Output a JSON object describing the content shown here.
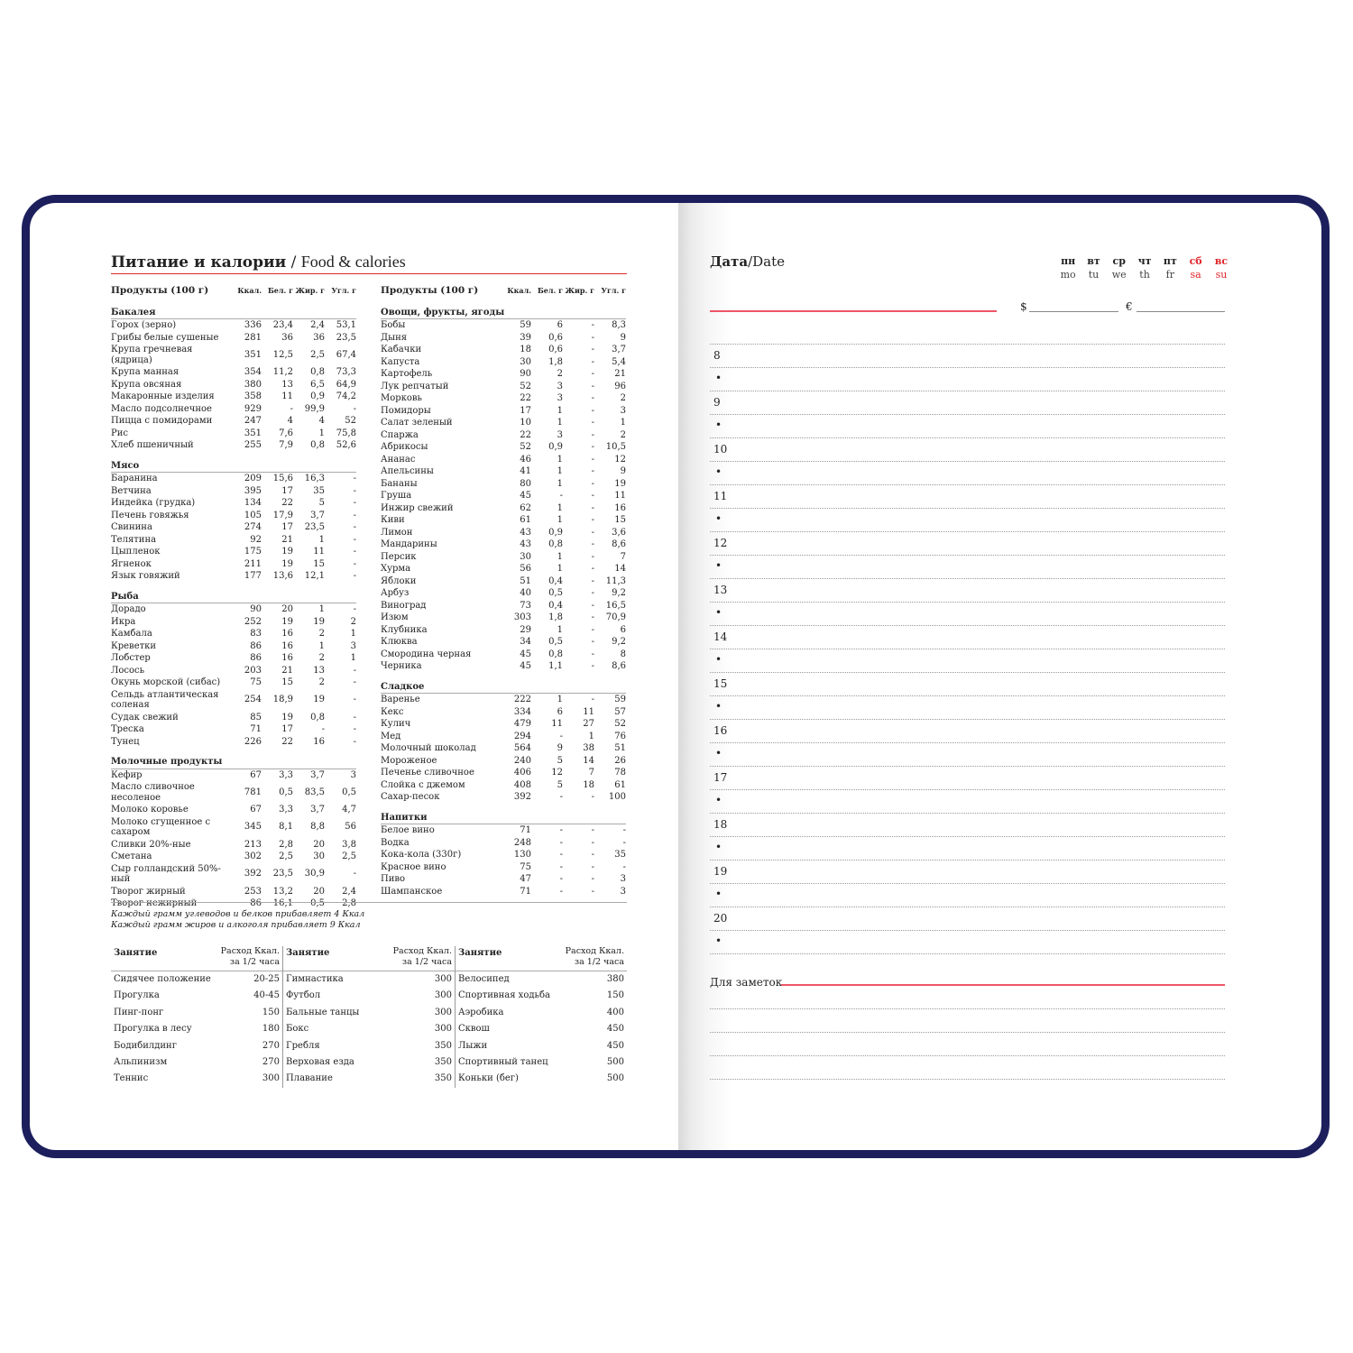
{
  "title": {
    "ru": "Питание и калории",
    "sep": " / ",
    "en": "Food & calories"
  },
  "table_headers": {
    "product": "Продукты (100 г)",
    "kcal": "Ккал.",
    "protein": "Бел. г",
    "fat": "Жир. г",
    "carbs": "Угл. г"
  },
  "left_sections": [
    {
      "name": "Бакалея",
      "rows": [
        [
          "Горох (зерно)",
          "336",
          "23,4",
          "2,4",
          "53,1"
        ],
        [
          "Грибы белые сушеные",
          "281",
          "36",
          "36",
          "23,5"
        ],
        [
          "Крупа гречневая (ядрица)",
          "351",
          "12,5",
          "2,5",
          "67,4"
        ],
        [
          "Крупа манная",
          "354",
          "11,2",
          "0,8",
          "73,3"
        ],
        [
          "Крупа овсяная",
          "380",
          "13",
          "6,5",
          "64,9"
        ],
        [
          "Макаронные изделия",
          "358",
          "11",
          "0,9",
          "74,2"
        ],
        [
          "Масло подсолнечное",
          "929",
          "-",
          "99,9",
          "-"
        ],
        [
          "Пицца с помидорами",
          "247",
          "4",
          "4",
          "52"
        ],
        [
          "Рис",
          "351",
          "7,6",
          "1",
          "75,8"
        ],
        [
          "Хлеб пшеничный",
          "255",
          "7,9",
          "0,8",
          "52,6"
        ]
      ]
    },
    {
      "name": "Мясо",
      "rows": [
        [
          "Баранина",
          "209",
          "15,6",
          "16,3",
          "-"
        ],
        [
          "Ветчина",
          "395",
          "17",
          "35",
          "-"
        ],
        [
          "Индейка (грудка)",
          "134",
          "22",
          "5",
          "-"
        ],
        [
          "Печень говяжья",
          "105",
          "17,9",
          "3,7",
          "-"
        ],
        [
          "Свинина",
          "274",
          "17",
          "23,5",
          "-"
        ],
        [
          "Телятина",
          "92",
          "21",
          "1",
          "-"
        ],
        [
          "Цыпленок",
          "175",
          "19",
          "11",
          "-"
        ],
        [
          "Ягненок",
          "211",
          "19",
          "15",
          "-"
        ],
        [
          "Язык говяжий",
          "177",
          "13,6",
          "12,1",
          "-"
        ]
      ]
    },
    {
      "name": "Рыба",
      "rows": [
        [
          "Дорадо",
          "90",
          "20",
          "1",
          "-"
        ],
        [
          "Икра",
          "252",
          "19",
          "19",
          "2"
        ],
        [
          "Камбала",
          "83",
          "16",
          "2",
          "1"
        ],
        [
          "Креветки",
          "86",
          "16",
          "1",
          "3"
        ],
        [
          "Лобстер",
          "86",
          "16",
          "2",
          "1"
        ],
        [
          "Лосось",
          "203",
          "21",
          "13",
          "-"
        ],
        [
          "Окунь морской (сибас)",
          "75",
          "15",
          "2",
          "-"
        ],
        [
          "Сельдь атлантическая соленая",
          "254",
          "18,9",
          "19",
          "-"
        ],
        [
          "Судак свежий",
          "85",
          "19",
          "0,8",
          "-"
        ],
        [
          "Треска",
          "71",
          "17",
          "-",
          "-"
        ],
        [
          "Тунец",
          "226",
          "22",
          "16",
          "-"
        ]
      ]
    },
    {
      "name": "Молочные продукты",
      "rows": [
        [
          "Кефир",
          "67",
          "3,3",
          "3,7",
          "3"
        ],
        [
          "Масло сливочное несоленое",
          "781",
          "0,5",
          "83,5",
          "0,5"
        ],
        [
          "Молоко коровье",
          "67",
          "3,3",
          "3,7",
          "4,7"
        ],
        [
          "Молоко сгущенное с сахаром",
          "345",
          "8,1",
          "8,8",
          "56"
        ],
        [
          "Сливки 20%-ные",
          "213",
          "2,8",
          "20",
          "3,8"
        ],
        [
          "Сметана",
          "302",
          "2,5",
          "30",
          "2,5"
        ],
        [
          "Сыр голландский 50%-ный",
          "392",
          "23,5",
          "30,9",
          "-"
        ],
        [
          "Творог жирный",
          "253",
          "13,2",
          "20",
          "2,4"
        ],
        [
          "Творог нежирный",
          "86",
          "16,1",
          "0,5",
          "2,8"
        ]
      ]
    }
  ],
  "right_sections": [
    {
      "name": "Овощи, фрукты, ягоды",
      "rows": [
        [
          "Бобы",
          "59",
          "6",
          "-",
          "8,3"
        ],
        [
          "Дыня",
          "39",
          "0,6",
          "-",
          "9"
        ],
        [
          "Кабачки",
          "18",
          "0,6",
          "-",
          "3,7"
        ],
        [
          "Капуста",
          "30",
          "1,8",
          "-",
          "5,4"
        ],
        [
          "Картофель",
          "90",
          "2",
          "-",
          "21"
        ],
        [
          "Лук репчатый",
          "52",
          "3",
          "-",
          "96"
        ],
        [
          "Морковь",
          "22",
          "3",
          "-",
          "2"
        ],
        [
          "Помидоры",
          "17",
          "1",
          "-",
          "3"
        ],
        [
          "Салат зеленый",
          "10",
          "1",
          "-",
          "1"
        ],
        [
          "Спаржа",
          "22",
          "3",
          "-",
          "2"
        ],
        [
          "Абрикосы",
          "52",
          "0,9",
          "-",
          "10,5"
        ],
        [
          "Ананас",
          "46",
          "1",
          "-",
          "12"
        ],
        [
          "Апельсины",
          "41",
          "1",
          "-",
          "9"
        ],
        [
          "Бананы",
          "80",
          "1",
          "-",
          "19"
        ],
        [
          "Груша",
          "45",
          "-",
          "-",
          "11"
        ],
        [
          "Инжир свежий",
          "62",
          "1",
          "-",
          "16"
        ],
        [
          "Киви",
          "61",
          "1",
          "-",
          "15"
        ],
        [
          "Лимон",
          "43",
          "0,9",
          "-",
          "3,6"
        ],
        [
          "Мандарины",
          "43",
          "0,8",
          "-",
          "8,6"
        ],
        [
          "Персик",
          "30",
          "1",
          "-",
          "7"
        ],
        [
          "Хурма",
          "56",
          "1",
          "-",
          "14"
        ],
        [
          "Яблоки",
          "51",
          "0,4",
          "-",
          "11,3"
        ],
        [
          "Арбуз",
          "40",
          "0,5",
          "-",
          "9,2"
        ],
        [
          "Виноград",
          "73",
          "0,4",
          "-",
          "16,5"
        ],
        [
          "Изюм",
          "303",
          "1,8",
          "-",
          "70,9"
        ],
        [
          "Клубника",
          "29",
          "1",
          "-",
          "6"
        ],
        [
          "Клюква",
          "34",
          "0,5",
          "-",
          "9,2"
        ],
        [
          "Смородина черная",
          "45",
          "0,8",
          "-",
          "8"
        ],
        [
          "Черника",
          "45",
          "1,1",
          "-",
          "8,6"
        ]
      ]
    },
    {
      "name": "Сладкое",
      "rows": [
        [
          "Варенье",
          "222",
          "1",
          "-",
          "59"
        ],
        [
          "Кекс",
          "334",
          "6",
          "11",
          "57"
        ],
        [
          "Кулич",
          "479",
          "11",
          "27",
          "52"
        ],
        [
          "Мед",
          "294",
          "-",
          "1",
          "76"
        ],
        [
          "Молочный шоколад",
          "564",
          "9",
          "38",
          "51"
        ],
        [
          "Мороженое",
          "240",
          "5",
          "14",
          "26"
        ],
        [
          "Печенье сливочное",
          "406",
          "12",
          "7",
          "78"
        ],
        [
          "Слойка с джемом",
          "408",
          "5",
          "18",
          "61"
        ],
        [
          "Сахар-песок",
          "392",
          "-",
          "-",
          "100"
        ]
      ]
    },
    {
      "name": "Напитки",
      "rows": [
        [
          "Белое вино",
          "71",
          "-",
          "-",
          "-"
        ],
        [
          "Водка",
          "248",
          "-",
          "-",
          "-"
        ],
        [
          "Кока-кола (330г)",
          "130",
          "-",
          "-",
          "35"
        ],
        [
          "Красное вино",
          "75",
          "-",
          "-",
          "-"
        ],
        [
          "Пиво",
          "47",
          "-",
          "-",
          "3"
        ],
        [
          "Шампанское",
          "71",
          "-",
          "-",
          "3"
        ]
      ]
    }
  ],
  "notes": [
    "Каждый грамм углеводов и белков прибавляет 4 Ккал",
    "Каждый грамм жиров и алкоголя прибавляет 9 Ккал"
  ],
  "activity_header": {
    "activity": "Занятие",
    "cost": "Расход Ккал.",
    "per": "за 1/2 часа"
  },
  "activities": [
    [
      [
        "Сидячее положение",
        "20-25"
      ],
      [
        "Прогулка",
        "40-45"
      ],
      [
        "Пинг-понг",
        "150"
      ],
      [
        "Прогулка в лесу",
        "180"
      ],
      [
        "Бодибилдинг",
        "270"
      ],
      [
        "Альпинизм",
        "270"
      ],
      [
        "Теннис",
        "300"
      ]
    ],
    [
      [
        "Гимнастика",
        "300"
      ],
      [
        "Футбол",
        "300"
      ],
      [
        "Бальные танцы",
        "300"
      ],
      [
        "Бокс",
        "300"
      ],
      [
        "Гребля",
        "350"
      ],
      [
        "Верховая езда",
        "350"
      ],
      [
        "Плавание",
        "350"
      ]
    ],
    [
      [
        "Велосипед",
        "380"
      ],
      [
        "Спортивная ходьба",
        "150"
      ],
      [
        "Аэробика",
        "400"
      ],
      [
        "Сквош",
        "450"
      ],
      [
        "Лыжи",
        "450"
      ],
      [
        "Спортивный танец",
        "500"
      ],
      [
        "Коньки (бег)",
        "500"
      ]
    ]
  ],
  "planner": {
    "date_ru": "Дата",
    "date_en": "/Date",
    "days": [
      {
        "ru": "пн",
        "en": "mo",
        "weekend": false
      },
      {
        "ru": "вт",
        "en": "tu",
        "weekend": false
      },
      {
        "ru": "ср",
        "en": "we",
        "weekend": false
      },
      {
        "ru": "чт",
        "en": "th",
        "weekend": false
      },
      {
        "ru": "пт",
        "en": "fr",
        "weekend": false
      },
      {
        "ru": "сб",
        "en": "sa",
        "weekend": true
      },
      {
        "ru": "вс",
        "en": "su",
        "weekend": true
      }
    ],
    "dollar": "$",
    "euro": "€",
    "hours": [
      "8",
      "9",
      "10",
      "11",
      "12",
      "13",
      "14",
      "15",
      "16",
      "17",
      "18",
      "19",
      "20"
    ],
    "bullet": "•",
    "notes_label": "Для заметок"
  },
  "colors": {
    "cover": "#1c1f5c",
    "accent": "#e0262b"
  }
}
